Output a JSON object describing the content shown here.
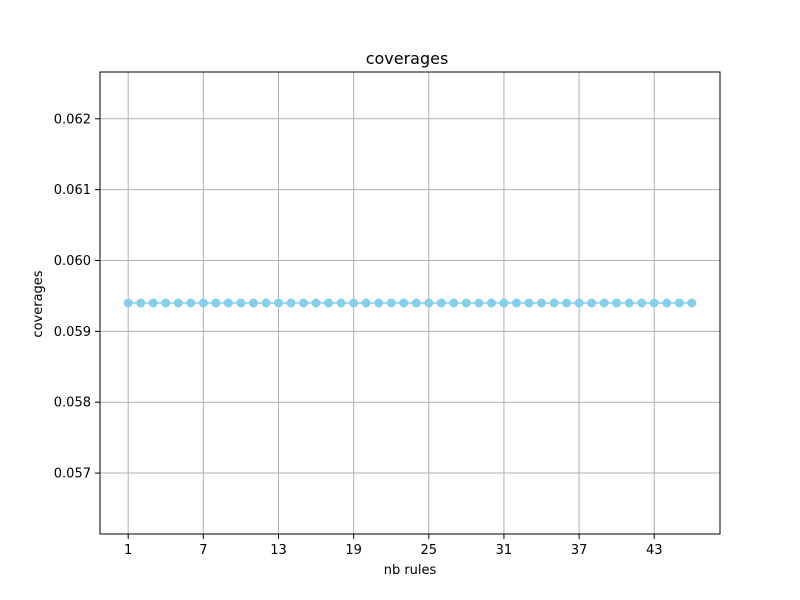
{
  "chart_data": {
    "type": "line",
    "title": "coverages",
    "xlabel": "nb rules",
    "ylabel": "coverages",
    "x": [
      1,
      2,
      3,
      4,
      5,
      6,
      7,
      8,
      9,
      10,
      11,
      12,
      13,
      14,
      15,
      16,
      17,
      18,
      19,
      20,
      21,
      22,
      23,
      24,
      25,
      26,
      27,
      28,
      29,
      30,
      31,
      32,
      33,
      34,
      35,
      36,
      37,
      38,
      39,
      40,
      41,
      42,
      43,
      44,
      45,
      46
    ],
    "series": [
      {
        "values": [
          0.0594,
          0.0594,
          0.0594,
          0.0594,
          0.0594,
          0.0594,
          0.0594,
          0.0594,
          0.0594,
          0.0594,
          0.0594,
          0.0594,
          0.0594,
          0.0594,
          0.0594,
          0.0594,
          0.0594,
          0.0594,
          0.0594,
          0.0594,
          0.0594,
          0.0594,
          0.0594,
          0.0594,
          0.0594,
          0.0594,
          0.0594,
          0.0594,
          0.0594,
          0.0594,
          0.0594,
          0.0594,
          0.0594,
          0.0594,
          0.0594,
          0.0594,
          0.0594,
          0.0594,
          0.0594,
          0.0594,
          0.0594,
          0.0594,
          0.0594,
          0.0594,
          0.0594,
          0.0594
        ],
        "color": "#87ceeb",
        "marker": "circle"
      }
    ],
    "xticks": [
      1,
      7,
      13,
      19,
      25,
      31,
      37,
      43
    ],
    "yticks": [
      0.057,
      0.058,
      0.059,
      0.06,
      0.061,
      0.062
    ],
    "ytick_labels": [
      "0.057",
      "0.058",
      "0.059",
      "0.060",
      "0.061",
      "0.062"
    ],
    "xlim": [
      -1.25,
      48.25
    ],
    "ylim": [
      0.05614,
      0.06266
    ],
    "grid": true,
    "legend": false
  }
}
